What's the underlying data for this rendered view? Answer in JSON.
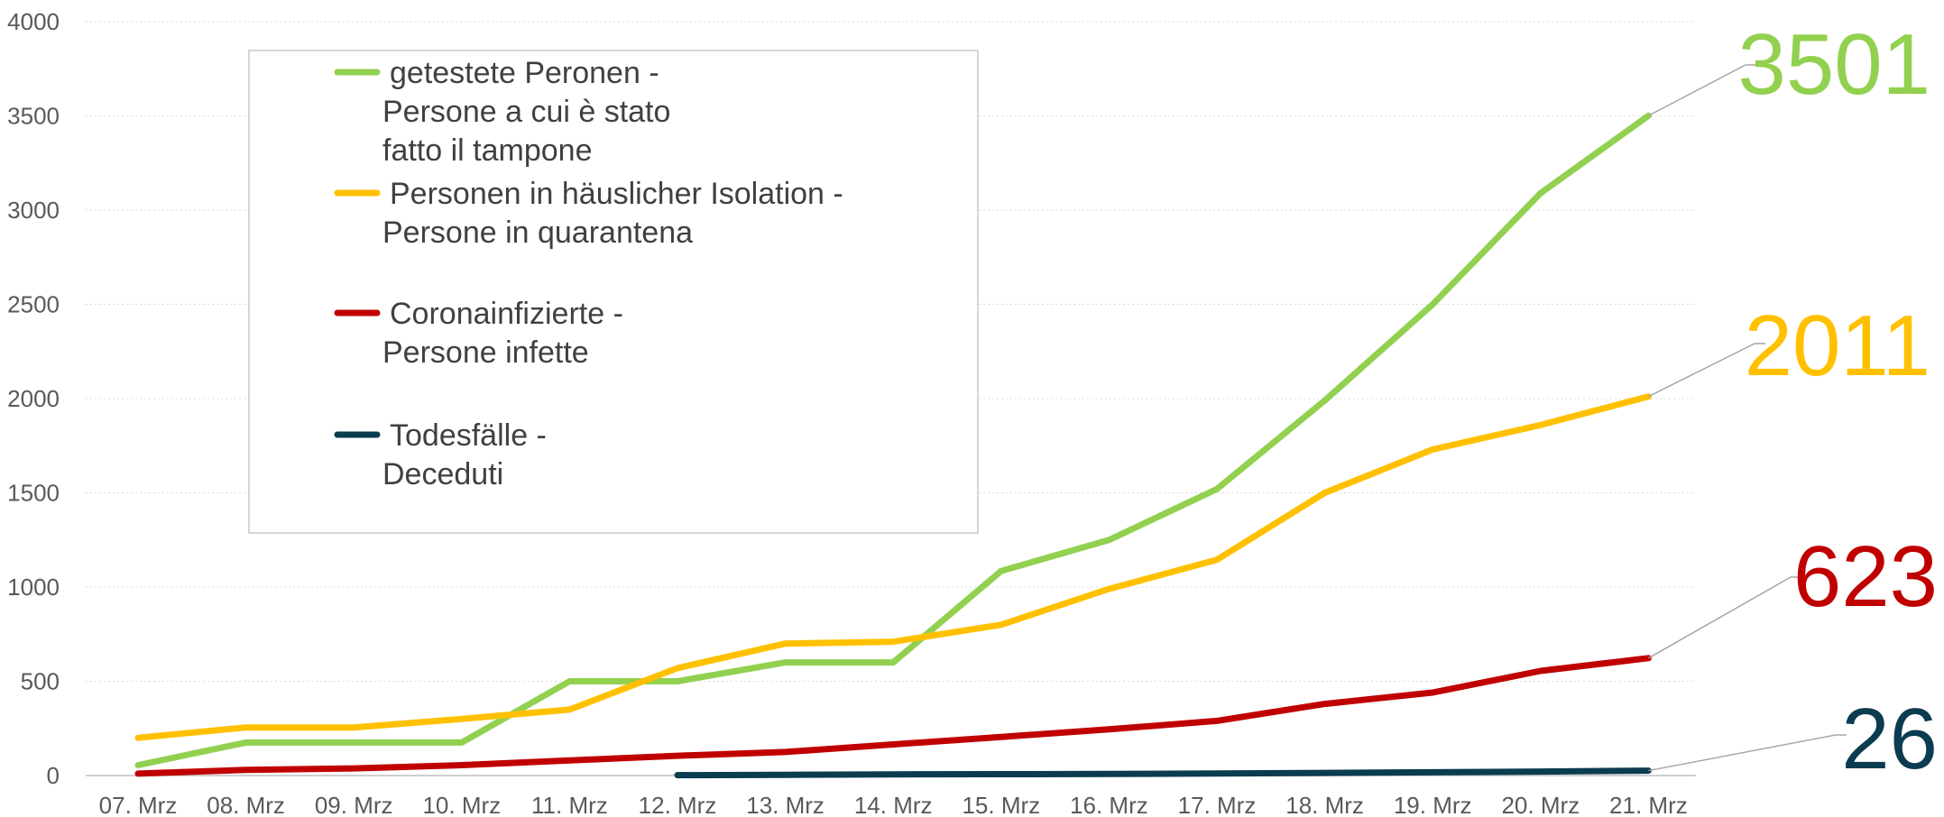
{
  "chart_data": {
    "type": "line",
    "title": "",
    "xlabel": "",
    "ylabel": "",
    "ylim": [
      0,
      4000
    ],
    "yticks": [
      0,
      500,
      1000,
      1500,
      2000,
      2500,
      3000,
      3500,
      4000
    ],
    "grid": true,
    "legend_position": "top-left",
    "categories": [
      "07. Mrz",
      "08. Mrz",
      "09. Mrz",
      "10. Mrz",
      "11. Mrz",
      "12. Mrz",
      "13. Mrz",
      "14. Mrz",
      "15. Mrz",
      "16. Mrz",
      "17. Mrz",
      "18. Mrz",
      "19. Mrz",
      "20. Mrz",
      "21. Mrz"
    ],
    "series": [
      {
        "key": "tested",
        "legend_lines": [
          "getestete Peronen -",
          "Persone a cui è stato",
          "fatto il tampone"
        ],
        "color": "#92D050",
        "values": [
          55,
          175,
          175,
          175,
          500,
          500,
          600,
          600,
          1085,
          1250,
          1520,
          1990,
          2500,
          3090,
          3501
        ],
        "end_label": "3501"
      },
      {
        "key": "isolation",
        "legend_lines": [
          "Personen in häuslicher Isolation -",
          "Persone in quarantena"
        ],
        "color": "#FFC000",
        "values": [
          200,
          255,
          255,
          300,
          350,
          570,
          700,
          710,
          800,
          990,
          1145,
          1500,
          1730,
          1860,
          2011
        ],
        "end_label": "2011"
      },
      {
        "key": "infected",
        "legend_lines": [
          "Coronainfizierte -",
          "Persone infette"
        ],
        "color": "#C00000",
        "values": [
          10,
          30,
          38,
          55,
          80,
          105,
          125,
          165,
          205,
          245,
          290,
          380,
          440,
          555,
          623
        ],
        "end_label": "623"
      },
      {
        "key": "deaths",
        "legend_lines": [
          "Todesfälle -",
          "Deceduti"
        ],
        "color": "#0B3C4F",
        "values": [
          null,
          null,
          null,
          null,
          null,
          2,
          4,
          6,
          7,
          8,
          11,
          14,
          17,
          21,
          26
        ],
        "end_label": "26"
      }
    ]
  }
}
